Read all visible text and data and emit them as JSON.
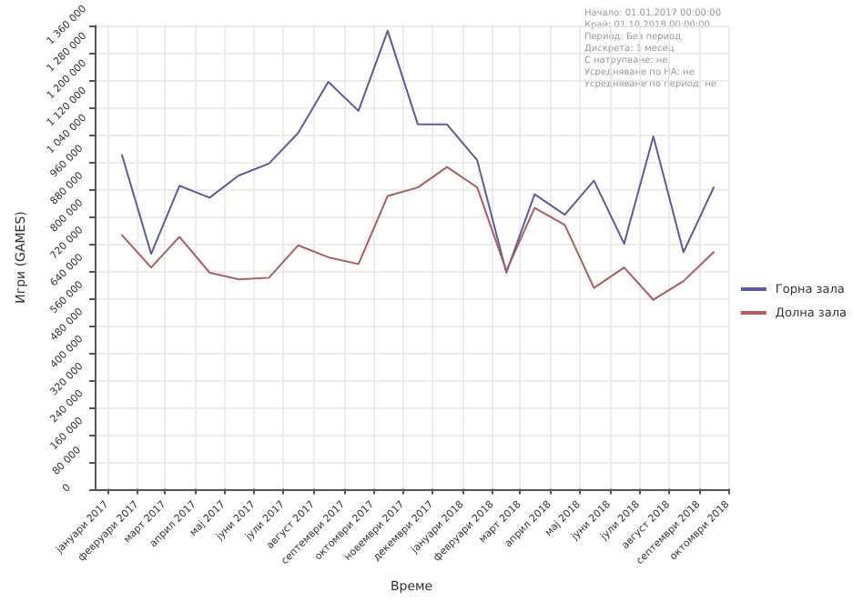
{
  "chart_data": {
    "type": "line",
    "xlabel": "Време",
    "ylabel": "Игри (GAMES)",
    "annotations": [
      "Начало: 01.01.2017 00:00:00",
      "Край: 01.10.2018 00:00:00",
      "Период: Без период",
      "Дискрета: 1 месец",
      "С натрупване: не",
      "Усредняване по НА: не",
      "Усредняване по период: не"
    ],
    "x": [
      "2017-01-16",
      "2017-02-15",
      "2017-03-16",
      "2017-04-16",
      "2017-05-16",
      "2017-06-16",
      "2017-07-16",
      "2017-08-16",
      "2017-09-16",
      "2017-10-16",
      "2017-11-16",
      "2017-12-16",
      "2018-01-16",
      "2018-02-15",
      "2018-03-16",
      "2018-04-16",
      "2018-05-16",
      "2018-06-16",
      "2018-07-16",
      "2018-08-16",
      "2018-09-16"
    ],
    "series": [
      {
        "name": "Горна зала",
        "color": "#5b5ba0",
        "values": [
          980000,
          690000,
          890000,
          855000,
          920000,
          955000,
          1045000,
          1195000,
          1110000,
          1345000,
          1070000,
          1070000,
          965000,
          635000,
          865000,
          805000,
          905000,
          720000,
          1035000,
          695000,
          885000
        ]
      },
      {
        "name": "Долна зала",
        "color": "#b05c5c",
        "values": [
          745000,
          650000,
          740000,
          635000,
          615000,
          620000,
          715000,
          680000,
          660000,
          860000,
          885000,
          945000,
          885000,
          640000,
          825000,
          775000,
          590000,
          650000,
          555000,
          610000,
          695000
        ]
      }
    ],
    "xlim": [
      "2016-12-19",
      "2018-10-01"
    ],
    "xticks": [
      {
        "value": "2017-01-01",
        "label": "јануари 2017"
      },
      {
        "value": "2017-02-01",
        "label": "февруари 2017"
      },
      {
        "value": "2017-03-01",
        "label": "март 2017"
      },
      {
        "value": "2017-04-01",
        "label": "април 2017"
      },
      {
        "value": "2017-05-01",
        "label": "мај 2017"
      },
      {
        "value": "2017-06-01",
        "label": "јуни 2017"
      },
      {
        "value": "2017-07-01",
        "label": "јули 2017"
      },
      {
        "value": "2017-08-01",
        "label": "август 2017"
      },
      {
        "value": "2017-09-01",
        "label": "септември 2017"
      },
      {
        "value": "2017-10-01",
        "label": "октомври 2017"
      },
      {
        "value": "2017-11-01",
        "label": "новември 2017"
      },
      {
        "value": "2017-12-01",
        "label": "декември 2017"
      },
      {
        "value": "2018-01-01",
        "label": "јануари 2018"
      },
      {
        "value": "2018-02-01",
        "label": "февруари 2018"
      },
      {
        "value": "2018-03-01",
        "label": "март 2018"
      },
      {
        "value": "2018-04-01",
        "label": "април 2018"
      },
      {
        "value": "2018-05-01",
        "label": "мај 2018"
      },
      {
        "value": "2018-06-01",
        "label": "јуни 2018"
      },
      {
        "value": "2018-07-01",
        "label": "јули 2018"
      },
      {
        "value": "2018-08-01",
        "label": "август 2018"
      },
      {
        "value": "2018-09-01",
        "label": "септември 2018"
      },
      {
        "value": "2018-10-01",
        "label": "октомври 2018"
      }
    ],
    "ylim": [
      0,
      1360000
    ],
    "yticks": [
      {
        "value": 0,
        "label": "0"
      },
      {
        "value": 80000,
        "label": "80 000"
      },
      {
        "value": 160000,
        "label": "160 000"
      },
      {
        "value": 240000,
        "label": "240 000"
      },
      {
        "value": 320000,
        "label": "320 000"
      },
      {
        "value": 400000,
        "label": "400 000"
      },
      {
        "value": 480000,
        "label": "480 000"
      },
      {
        "value": 560000,
        "label": "560 000"
      },
      {
        "value": 640000,
        "label": "640 000"
      },
      {
        "value": 720000,
        "label": "720 000"
      },
      {
        "value": 800000,
        "label": "800 000"
      },
      {
        "value": 880000,
        "label": "880 000"
      },
      {
        "value": 960000,
        "label": "960 000"
      },
      {
        "value": 1040000,
        "label": "1 040 000"
      },
      {
        "value": 1120000,
        "label": "1 120 000"
      },
      {
        "value": 1200000,
        "label": "1 200 000"
      },
      {
        "value": 1280000,
        "label": "1 280 000"
      },
      {
        "value": 1360000,
        "label": "1 360 000"
      }
    ],
    "grid": true,
    "legend": "right",
    "marker": "none",
    "line_style": "solid"
  }
}
